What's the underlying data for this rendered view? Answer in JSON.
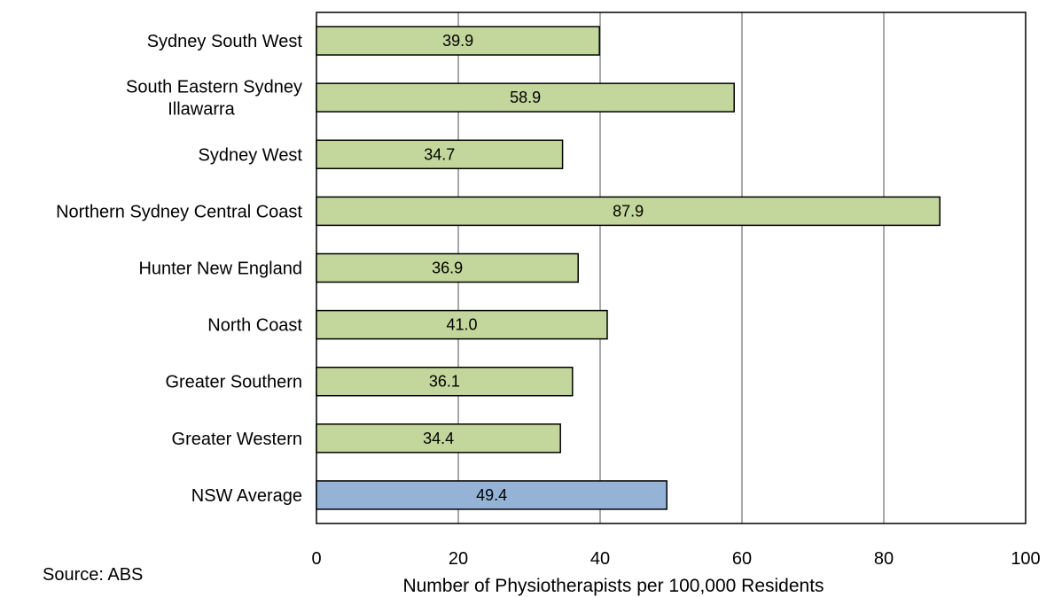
{
  "chart_data": {
    "type": "bar",
    "orientation": "horizontal",
    "categories": [
      [
        "Sydney South West"
      ],
      [
        "South Eastern Sydney",
        "Illawarra"
      ],
      [
        "Sydney West"
      ],
      [
        "Northern Sydney Central Coast"
      ],
      [
        "Hunter New England"
      ],
      [
        "North Coast"
      ],
      [
        "Greater Southern"
      ],
      [
        "Greater Western"
      ],
      [
        "NSW Average"
      ]
    ],
    "values": [
      39.9,
      58.9,
      34.7,
      87.9,
      36.9,
      41.0,
      36.1,
      34.4,
      49.4
    ],
    "data_labels": [
      "39.9",
      "58.9",
      "34.7",
      "87.9",
      "36.9",
      "41.0",
      "36.1",
      "34.4",
      "49.4"
    ],
    "bar_colors": [
      "#c3d69b",
      "#c3d69b",
      "#c3d69b",
      "#c3d69b",
      "#c3d69b",
      "#c3d69b",
      "#c3d69b",
      "#c3d69b",
      "#95b3d7"
    ],
    "xlabel": "Number of Physiotherapists per 100,000 Residents",
    "xlim": [
      0,
      100
    ],
    "xticks": [
      0,
      20,
      40,
      60,
      80,
      100
    ],
    "grid": "vertical",
    "legend": "none",
    "source": "Source: ABS"
  }
}
